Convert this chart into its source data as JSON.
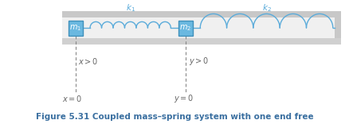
{
  "fig_width": 4.39,
  "fig_height": 1.56,
  "dpi": 100,
  "background_color": "#ffffff",
  "wall_top_color": "#c8c8c8",
  "wall_right_color": "#c8c8c8",
  "floor_color": "#d0d0d0",
  "inner_bg_color": "#f0f0f0",
  "spring_color": "#5aabda",
  "mass_face_color": "#6ab8e0",
  "mass_edge_color": "#4090bb",
  "line_color": "#5aabda",
  "k_text_color": "#5aabda",
  "dash_color": "#888888",
  "annot_color": "#666666",
  "caption_color": "#3a6fa0",
  "figure_caption": "Figure 5.31 Coupled mass–spring system with one end free",
  "xlim": [
    0,
    10
  ],
  "ylim": [
    -1.3,
    2.0
  ]
}
